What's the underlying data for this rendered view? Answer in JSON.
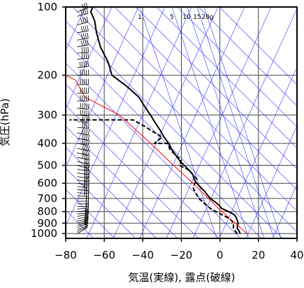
{
  "chart_data": {
    "type": "line",
    "title": "",
    "xlabel": "気温(実線), 露点(破線)",
    "ylabel": "気圧(hPa)",
    "xlim": [
      -80,
      40
    ],
    "ylim": [
      1050,
      100
    ],
    "y_scale": "log",
    "grid": true,
    "x_ticks": [
      -80,
      -60,
      -40,
      -20,
      0,
      20,
      40
    ],
    "x_tick_labels": [
      "−80",
      "−60",
      "−40",
      "−20",
      "0",
      "20",
      "40"
    ],
    "y_ticks": [
      100,
      200,
      300,
      400,
      500,
      600,
      700,
      800,
      900,
      1000
    ],
    "y_tick_labels": [
      "100",
      "200",
      "300",
      "400",
      "500",
      "600",
      "700",
      "800",
      "900",
      "1000"
    ],
    "mixing_ratio_labels": [
      "1",
      "5",
      "10",
      "15",
      "20g"
    ],
    "series": [
      {
        "key": "temperature",
        "style": "solid",
        "color": "#000000",
        "points": [
          [
            10.5,
            1000
          ],
          [
            10,
            975
          ],
          [
            9,
            950
          ],
          [
            9,
            925
          ],
          [
            9.5,
            900
          ],
          [
            9,
            875
          ],
          [
            8.5,
            850
          ],
          [
            7.5,
            825
          ],
          [
            4.5,
            800
          ],
          [
            1,
            775
          ],
          [
            -0.5,
            750
          ],
          [
            -2.5,
            725
          ],
          [
            -5,
            700
          ],
          [
            -6.5,
            675
          ],
          [
            -8,
            650
          ],
          [
            -10,
            625
          ],
          [
            -12,
            600
          ],
          [
            -13.5,
            575
          ],
          [
            -14,
            550
          ],
          [
            -16,
            525
          ],
          [
            -18.5,
            500
          ],
          [
            -21,
            475
          ],
          [
            -23,
            450
          ],
          [
            -25,
            425
          ],
          [
            -26.5,
            400
          ],
          [
            -29,
            375
          ],
          [
            -31,
            350
          ],
          [
            -33.5,
            325
          ],
          [
            -36,
            300
          ],
          [
            -39,
            275
          ],
          [
            -42,
            250
          ],
          [
            -48,
            225
          ],
          [
            -56,
            200
          ],
          [
            -58,
            175
          ],
          [
            -62,
            150
          ],
          [
            -64,
            130
          ],
          [
            -65,
            115
          ],
          [
            -67,
            105
          ],
          [
            -66,
            100
          ]
        ]
      },
      {
        "key": "dewpoint",
        "style": "dashed",
        "color": "#000000",
        "points": [
          [
            9,
            1000
          ],
          [
            8,
            975
          ],
          [
            7,
            950
          ],
          [
            7,
            925
          ],
          [
            7,
            900
          ],
          [
            6,
            875
          ],
          [
            4,
            850
          ],
          [
            1,
            825
          ],
          [
            -2,
            800
          ],
          [
            -5,
            775
          ],
          [
            -7,
            750
          ],
          [
            -9,
            725
          ],
          [
            -11,
            700
          ],
          [
            -12,
            675
          ],
          [
            -13,
            650
          ],
          [
            -14,
            625
          ],
          [
            -13,
            600
          ],
          [
            -12,
            575
          ],
          [
            -14,
            550
          ],
          [
            -16,
            525
          ],
          [
            -21,
            500
          ],
          [
            -20,
            475
          ],
          [
            -23,
            450
          ],
          [
            -26,
            425
          ],
          [
            -27,
            400
          ],
          [
            -34,
            400
          ],
          [
            -30,
            375
          ],
          [
            -36,
            350
          ],
          [
            -38,
            340
          ],
          [
            -45,
            315
          ],
          [
            -78,
            315
          ]
        ]
      },
      {
        "key": "reference",
        "style": "solid",
        "color": "#ff0000",
        "points": [
          [
            14,
            1000
          ],
          [
            8,
            900
          ],
          [
            1,
            800
          ],
          [
            -6,
            700
          ],
          [
            -14,
            600
          ],
          [
            -24,
            500
          ],
          [
            -36,
            400
          ],
          [
            -52,
            300
          ],
          [
            -70,
            250
          ],
          [
            -75,
            210
          ],
          [
            -80,
            200
          ]
        ]
      }
    ],
    "wind_barbs": {
      "direction_deg": [
        240,
        245,
        250,
        250,
        255,
        255,
        260,
        260,
        260,
        265,
        265,
        265,
        270,
        270,
        270,
        270,
        275,
        275,
        275,
        275,
        280,
        280,
        280,
        280,
        280,
        285,
        285,
        285,
        285,
        285,
        280,
        280,
        280,
        275,
        275,
        275,
        275,
        270,
        270,
        270,
        270,
        265,
        265,
        265,
        260,
        260,
        260,
        255,
        255,
        250
      ],
      "speed_kt": [
        15,
        15,
        20,
        20,
        20,
        20,
        20,
        20,
        20,
        25,
        25,
        25,
        25,
        25,
        25,
        25,
        30,
        30,
        30,
        30,
        30,
        30,
        35,
        35,
        35,
        35,
        35,
        40,
        40,
        40,
        40,
        40,
        45,
        45,
        45,
        50,
        50,
        50,
        50,
        50,
        50,
        50,
        45,
        45,
        45,
        45,
        40,
        40,
        40,
        35
      ],
      "pressure_hpa": [
        1000,
        980,
        960,
        940,
        920,
        900,
        880,
        860,
        840,
        820,
        800,
        780,
        760,
        740,
        720,
        700,
        680,
        660,
        640,
        620,
        600,
        580,
        560,
        540,
        520,
        500,
        480,
        460,
        440,
        420,
        400,
        380,
        360,
        340,
        320,
        300,
        280,
        260,
        240,
        220,
        200,
        185,
        170,
        160,
        150,
        140,
        130,
        120,
        110,
        105
      ]
    }
  }
}
